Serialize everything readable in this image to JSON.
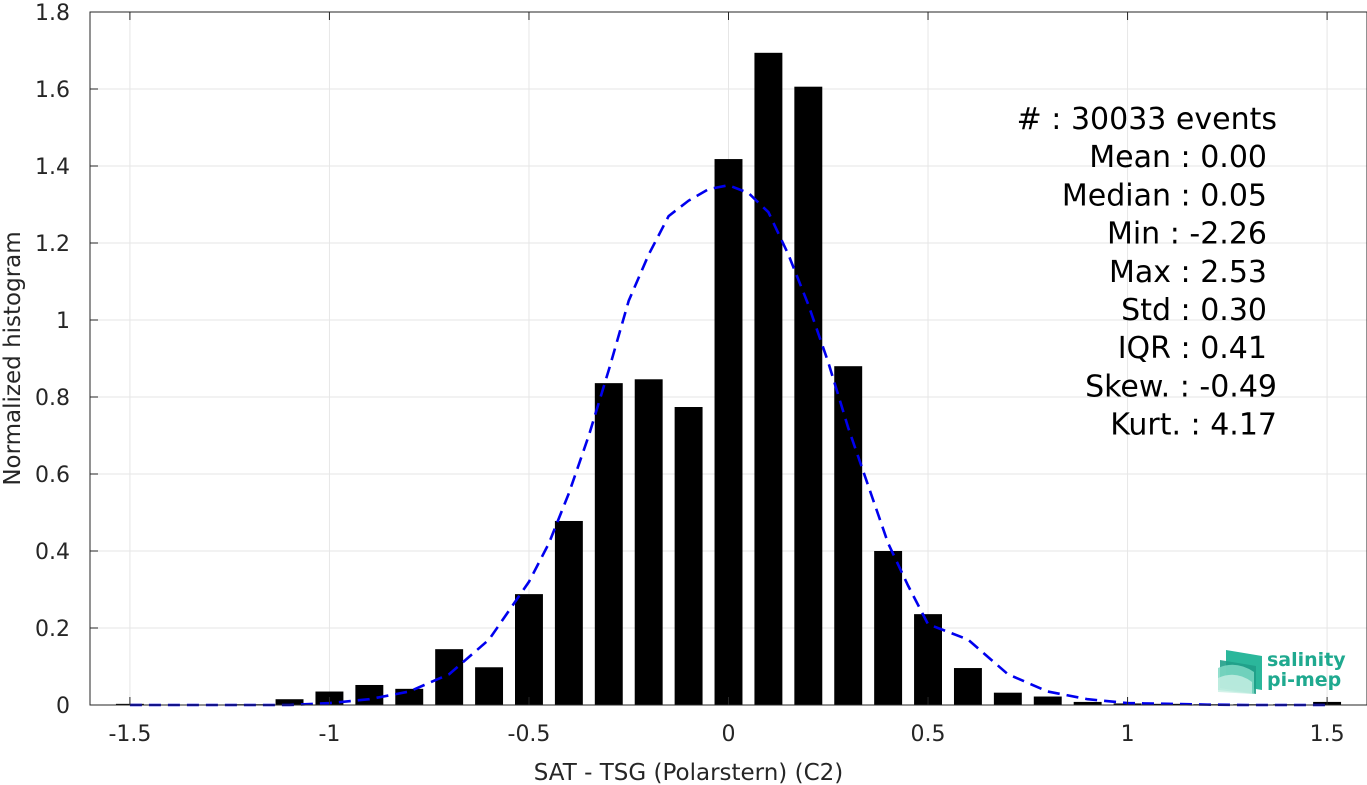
{
  "chart_data": {
    "type": "bar",
    "xlabel": "SAT - TSG (Polarstern) (C2)",
    "ylabel": "Normalized histogram",
    "xlim": [
      -1.6,
      1.6
    ],
    "ylim": [
      0,
      1.8
    ],
    "xticks": [
      -1.5,
      -1,
      -0.5,
      0,
      0.5,
      1,
      1.5
    ],
    "xtick_labels": [
      "-1.5",
      "-1",
      "-0.5",
      "0",
      "0.5",
      "1",
      "1.5"
    ],
    "yticks": [
      0,
      0.2,
      0.4,
      0.6,
      0.8,
      1,
      1.2,
      1.4,
      1.6,
      1.8
    ],
    "ytick_labels": [
      "0",
      "0.2",
      "0.4",
      "0.6",
      "0.8",
      "1",
      "1.2",
      "1.4",
      "1.6",
      "1.8"
    ],
    "grid": true,
    "bar_width": 0.07,
    "bar_color": "#000000",
    "bins": [
      -1.5,
      -1.4,
      -1.3,
      -1.2,
      -1.1,
      -1.0,
      -0.9,
      -0.8,
      -0.7,
      -0.6,
      -0.5,
      -0.4,
      -0.3,
      -0.2,
      -0.1,
      0.0,
      0.1,
      0.2,
      0.3,
      0.4,
      0.5,
      0.6,
      0.7,
      0.8,
      0.9,
      1.0,
      1.1,
      1.2,
      1.3,
      1.4,
      1.5
    ],
    "values": [
      0.003,
      0.001,
      0.001,
      0.002,
      0.015,
      0.035,
      0.052,
      0.042,
      0.145,
      0.098,
      0.288,
      0.478,
      0.836,
      0.846,
      0.774,
      1.418,
      1.694,
      1.606,
      0.88,
      0.4,
      0.236,
      0.096,
      0.032,
      0.022,
      0.008,
      0.004,
      0.003,
      0.002,
      0.002,
      0.002,
      0.008
    ],
    "fit": {
      "style": "dashed",
      "color": "#0000ee",
      "x": [
        -1.5,
        -1.4,
        -1.3,
        -1.2,
        -1.1,
        -1.0,
        -0.9,
        -0.8,
        -0.7,
        -0.6,
        -0.5,
        -0.45,
        -0.4,
        -0.35,
        -0.3,
        -0.25,
        -0.2,
        -0.15,
        -0.1,
        -0.05,
        0.0,
        0.05,
        0.1,
        0.15,
        0.2,
        0.25,
        0.3,
        0.35,
        0.4,
        0.45,
        0.5,
        0.6,
        0.7,
        0.8,
        0.9,
        1.0,
        1.1,
        1.2,
        1.3,
        1.4,
        1.5
      ],
      "y": [
        0.0,
        0.0,
        0.0,
        0.0,
        0.0,
        0.005,
        0.015,
        0.035,
        0.08,
        0.17,
        0.32,
        0.42,
        0.55,
        0.7,
        0.87,
        1.05,
        1.17,
        1.27,
        1.31,
        1.34,
        1.35,
        1.33,
        1.28,
        1.17,
        1.04,
        0.89,
        0.72,
        0.57,
        0.42,
        0.31,
        0.21,
        0.17,
        0.08,
        0.035,
        0.015,
        0.005,
        0.003,
        0.001,
        0.0,
        0.0,
        0.0
      ]
    },
    "annotations": [
      "#  : 30033 events",
      "Mean : 0.00",
      "Median : 0.05",
      "Min : -2.26",
      "Max : 2.53",
      "Std : 0.30",
      "IQR : 0.41",
      "Skew. : -0.49",
      "Kurt. : 4.17"
    ]
  },
  "logo": {
    "line1": "salinity",
    "line2": "pi-mep",
    "color": "#1fa98f"
  }
}
